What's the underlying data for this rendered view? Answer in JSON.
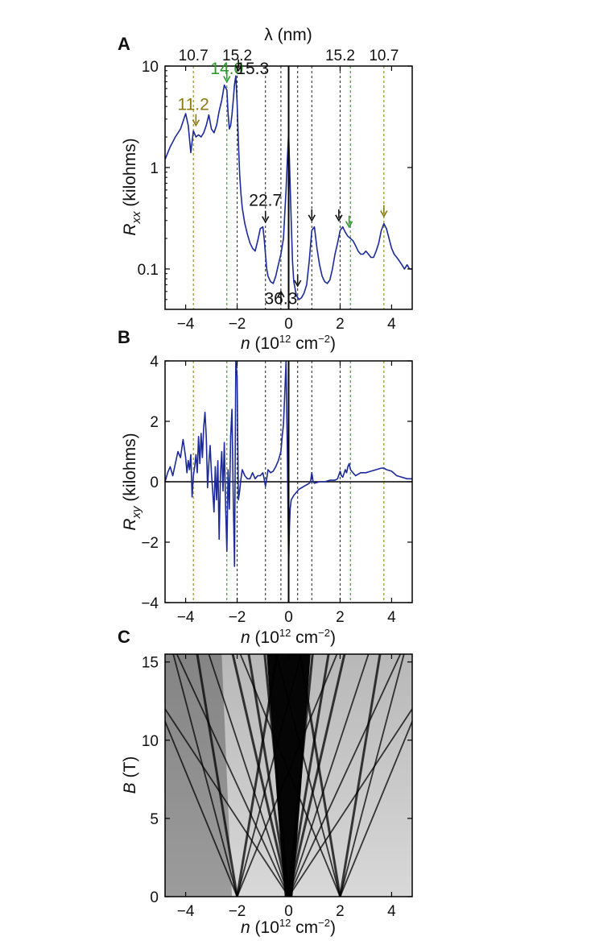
{
  "chart_data": [
    {
      "panel": "A",
      "type": "line",
      "y_scale": "log",
      "xlabel_prefix": "n",
      "xlabel_units": "(10",
      "xlabel_exp": "12",
      "xlabel_tail": " cm",
      "xlabel_exp2": "−2",
      "xlabel_close": ")",
      "ylabel_prefix": "R",
      "ylabel_sub": "xx",
      "ylabel_units": " (kilohms)",
      "top_axis_label": "λ (nm)",
      "top_ticks": [
        {
          "x": -3.7,
          "label": "10.7"
        },
        {
          "x": -2.0,
          "label": "15.2"
        },
        {
          "x": 2.0,
          "label": "15.2"
        },
        {
          "x": 3.7,
          "label": "10.7"
        }
      ],
      "xlim": [
        -4.8,
        4.8
      ],
      "ylim": [
        0.04,
        10
      ],
      "x_ticks": [
        -4,
        -2,
        0,
        2,
        4
      ],
      "y_ticks": [
        0.1,
        1,
        10
      ],
      "y_tick_labels": [
        "0.1",
        "1",
        "10"
      ],
      "line_color": "#1c2a9a",
      "series": [
        {
          "x": [
            -4.8,
            -4.6,
            -4.4,
            -4.2,
            -4.0,
            -3.9,
            -3.8,
            -3.7,
            -3.6,
            -3.5,
            -3.4,
            -3.3,
            -3.2,
            -3.1,
            -3.0,
            -2.9,
            -2.8,
            -2.7,
            -2.6,
            -2.5,
            -2.4,
            -2.35,
            -2.3,
            -2.25,
            -2.2,
            -2.15,
            -2.1,
            -2.05,
            -2.0,
            -1.95,
            -1.9,
            -1.85,
            -1.8,
            -1.7,
            -1.6,
            -1.5,
            -1.4,
            -1.3,
            -1.2,
            -1.1,
            -1.0,
            -0.95,
            -0.9,
            -0.85,
            -0.8,
            -0.7,
            -0.6,
            -0.5,
            -0.4,
            -0.3,
            -0.2,
            -0.15,
            -0.1,
            -0.05,
            0.0,
            0.05,
            0.1,
            0.15,
            0.2,
            0.3,
            0.4,
            0.5,
            0.6,
            0.7,
            0.8,
            0.9,
            1.0,
            1.1,
            1.2,
            1.3,
            1.4,
            1.5,
            1.6,
            1.7,
            1.8,
            1.9,
            2.0,
            2.1,
            2.2,
            2.3,
            2.4,
            2.5,
            2.6,
            2.7,
            2.8,
            2.9,
            3.0,
            3.1,
            3.2,
            3.3,
            3.4,
            3.5,
            3.6,
            3.7,
            3.8,
            3.9,
            4.0,
            4.1,
            4.2,
            4.3,
            4.4,
            4.5,
            4.6,
            4.7,
            4.8
          ],
          "y": [
            1.2,
            1.6,
            2.0,
            2.4,
            3.4,
            2.6,
            1.4,
            2.3,
            2.0,
            2.1,
            2.0,
            2.2,
            2.6,
            3.3,
            2.4,
            2.2,
            2.6,
            3.6,
            4.6,
            6.5,
            5.8,
            3.4,
            2.4,
            2.6,
            3.3,
            4.6,
            6.6,
            8.0,
            4.4,
            1.8,
            0.85,
            0.55,
            0.4,
            0.28,
            0.22,
            0.18,
            0.16,
            0.15,
            0.19,
            0.25,
            0.26,
            0.2,
            0.14,
            0.1,
            0.085,
            0.075,
            0.072,
            0.085,
            0.11,
            0.14,
            0.2,
            0.35,
            0.6,
            1.2,
            2.2,
            0.8,
            0.3,
            0.12,
            0.075,
            0.055,
            0.05,
            0.052,
            0.058,
            0.07,
            0.12,
            0.24,
            0.26,
            0.16,
            0.11,
            0.085,
            0.075,
            0.072,
            0.078,
            0.1,
            0.14,
            0.18,
            0.24,
            0.26,
            0.23,
            0.21,
            0.2,
            0.19,
            0.17,
            0.15,
            0.14,
            0.14,
            0.15,
            0.14,
            0.13,
            0.13,
            0.15,
            0.18,
            0.24,
            0.28,
            0.25,
            0.2,
            0.16,
            0.14,
            0.13,
            0.12,
            0.11,
            0.1,
            0.11,
            0.1,
            0.1
          ]
        }
      ],
      "vlines": [
        {
          "x": -3.7,
          "color": "#8a8a1a"
        },
        {
          "x": -2.4,
          "color": "#2a9a2a"
        },
        {
          "x": -2.0,
          "color": "#333333"
        },
        {
          "x": -0.9,
          "color": "#333333"
        },
        {
          "x": -0.3,
          "color": "#333333"
        },
        {
          "x": 0.35,
          "color": "#333333"
        },
        {
          "x": 0.9,
          "color": "#333333"
        },
        {
          "x": 2.0,
          "color": "#333333"
        },
        {
          "x": 2.4,
          "color": "#2a9a2a"
        },
        {
          "x": 3.7,
          "color": "#8a8a1a"
        }
      ],
      "annotations": [
        {
          "text": "11.2",
          "color": "#8a7a10",
          "x": -3.7,
          "y": 3.7
        },
        {
          "text": "14.0",
          "color": "#2a9a2a",
          "x": -2.4,
          "y": 8.3
        },
        {
          "text": "15.3",
          "color": "#111111",
          "x": -1.4,
          "y": 8.3
        },
        {
          "text": "22.7",
          "color": "#111111",
          "x": -0.9,
          "y": 0.42
        },
        {
          "text": "36.3",
          "color": "#111111",
          "x": -0.3,
          "y": 0.045
        }
      ],
      "arrows": [
        {
          "x": -3.6,
          "y": 2.6,
          "color": "#8a7a10",
          "dir": "down"
        },
        {
          "x": -2.4,
          "y": 7.0,
          "color": "#2a9a2a",
          "dir": "down"
        },
        {
          "x": -1.95,
          "y": 9.0,
          "color": "#111111",
          "dir": "down"
        },
        {
          "x": -0.9,
          "y": 0.29,
          "color": "#111111",
          "dir": "down"
        },
        {
          "x": -0.3,
          "y": 0.06,
          "color": "#111111",
          "dir": "up"
        },
        {
          "x": 0.35,
          "y": 0.068,
          "color": "#111111",
          "dir": "down"
        },
        {
          "x": 0.9,
          "y": 0.3,
          "color": "#111111",
          "dir": "down"
        },
        {
          "x": 1.95,
          "y": 0.3,
          "color": "#111111",
          "dir": "down"
        },
        {
          "x": 2.35,
          "y": 0.26,
          "color": "#2a9a2a",
          "dir": "down"
        },
        {
          "x": 3.7,
          "y": 0.33,
          "color": "#8a7a10",
          "dir": "down"
        }
      ]
    },
    {
      "panel": "B",
      "type": "line",
      "xlabel_prefix": "n",
      "xlabel_units": "(10",
      "xlabel_exp": "12",
      "xlabel_tail": " cm",
      "xlabel_exp2": "−2",
      "xlabel_close": ")",
      "ylabel_prefix": "R",
      "ylabel_sub": "xy",
      "ylabel_units": " (kilohms)",
      "xlim": [
        -4.8,
        4.8
      ],
      "ylim": [
        -4,
        4
      ],
      "x_ticks": [
        -4,
        -2,
        0,
        2,
        4
      ],
      "y_ticks": [
        -4,
        -2,
        0,
        2,
        4
      ],
      "y_tick_labels": [
        "−4",
        "−2",
        "0",
        "2",
        "4"
      ],
      "line_color": "#1c2a9a",
      "series": [
        {
          "x": [
            -4.8,
            -4.7,
            -4.6,
            -4.5,
            -4.4,
            -4.3,
            -4.2,
            -4.1,
            -4.0,
            -3.95,
            -3.9,
            -3.85,
            -3.8,
            -3.75,
            -3.7,
            -3.65,
            -3.6,
            -3.55,
            -3.5,
            -3.45,
            -3.4,
            -3.35,
            -3.3,
            -3.25,
            -3.2,
            -3.15,
            -3.1,
            -3.05,
            -3.0,
            -2.95,
            -2.9,
            -2.85,
            -2.8,
            -2.75,
            -2.7,
            -2.65,
            -2.6,
            -2.55,
            -2.5,
            -2.45,
            -2.4,
            -2.35,
            -2.3,
            -2.25,
            -2.2,
            -2.15,
            -2.1,
            -2.05,
            -2.0,
            -1.95,
            -1.9,
            -1.85,
            -1.8,
            -1.7,
            -1.6,
            -1.5,
            -1.4,
            -1.3,
            -1.2,
            -1.1,
            -1.0,
            -0.95,
            -0.9,
            -0.85,
            -0.8,
            -0.7,
            -0.6,
            -0.5,
            -0.4,
            -0.3,
            -0.25,
            -0.2,
            -0.15,
            -0.1,
            -0.05,
            0.0,
            0.03,
            0.06,
            0.1,
            0.2,
            0.3,
            0.4,
            0.5,
            0.6,
            0.7,
            0.8,
            0.85,
            0.9,
            0.95,
            1.0,
            1.2,
            1.4,
            1.6,
            1.8,
            1.9,
            2.0,
            2.05,
            2.1,
            2.2,
            2.25,
            2.3,
            2.35,
            2.4,
            2.5,
            2.6,
            2.8,
            3.0,
            3.2,
            3.4,
            3.6,
            3.7,
            3.8,
            4.0,
            4.2,
            4.4,
            4.6,
            4.8
          ],
          "y": [
            0.0,
            0.3,
            0.5,
            0.2,
            0.6,
            1.0,
            0.8,
            1.4,
            0.8,
            0.3,
            0.7,
            0.4,
            0.9,
            -0.5,
            0.2,
            0.5,
            0.9,
            0.3,
            1.5,
            0.6,
            1.6,
            0.8,
            1.8,
            2.3,
            1.5,
            -0.2,
            0.6,
            1.2,
            0.3,
            -0.3,
            -1.0,
            0.5,
            -0.6,
            0.7,
            -1.9,
            0.2,
            1.0,
            -0.3,
            1.3,
            -0.8,
            -2.3,
            0.4,
            -0.9,
            1.5,
            2.4,
            -0.5,
            -2.8,
            4.0,
            3.5,
            -0.6,
            -0.3,
            0.1,
            0.4,
            0.2,
            0.1,
            0.1,
            0.3,
            0.1,
            0.2,
            0.2,
            0.3,
            0.1,
            -0.15,
            0.1,
            0.4,
            0.3,
            0.35,
            0.5,
            0.7,
            1.0,
            1.5,
            1.9,
            2.9,
            4.0,
            1.0,
            -2.9,
            -1.5,
            -0.9,
            -0.6,
            -0.45,
            -0.35,
            -0.25,
            -0.2,
            -0.15,
            -0.1,
            -0.05,
            0.0,
            0.3,
            0.0,
            -0.05,
            0.0,
            0.0,
            0.05,
            0.05,
            0.1,
            0.35,
            0.2,
            0.15,
            0.4,
            0.3,
            0.5,
            0.6,
            0.4,
            0.3,
            0.2,
            0.3,
            0.3,
            0.35,
            0.4,
            0.45,
            0.45,
            0.4,
            0.35,
            0.2,
            0.15,
            0.1,
            0.1
          ]
        }
      ],
      "vlines": [
        {
          "x": -3.7,
          "color": "#8a8a1a"
        },
        {
          "x": -2.4,
          "color": "#2a9a2a"
        },
        {
          "x": -2.0,
          "color": "#333333"
        },
        {
          "x": -0.9,
          "color": "#333333"
        },
        {
          "x": -0.3,
          "color": "#333333"
        },
        {
          "x": 0.35,
          "color": "#333333"
        },
        {
          "x": 0.9,
          "color": "#333333"
        },
        {
          "x": 2.0,
          "color": "#333333"
        },
        {
          "x": 2.4,
          "color": "#2a9a2a"
        },
        {
          "x": 3.7,
          "color": "#8a8a1a"
        }
      ]
    },
    {
      "panel": "C",
      "type": "heatmap",
      "xlabel_prefix": "n",
      "xlabel_units": "(10",
      "xlabel_exp": "12",
      "xlabel_tail": " cm",
      "xlabel_exp2": "−2",
      "xlabel_close": ")",
      "ylabel_prefix": "B",
      "ylabel_units": " (T)",
      "xlim": [
        -4.8,
        4.8
      ],
      "ylim": [
        0,
        15.5
      ],
      "x_ticks": [
        -4,
        -2,
        0,
        2,
        4
      ],
      "y_ticks": [
        0,
        5,
        10,
        15
      ],
      "y_tick_labels": [
        "0",
        "5",
        "10",
        "15"
      ],
      "fans": [
        {
          "origin": 0,
          "slopes": [
            0.06,
            0.1,
            0.14,
            0.2,
            0.28,
            0.4,
            -0.06,
            -0.1,
            -0.14,
            -0.2,
            -0.28,
            -0.4
          ]
        },
        {
          "origin": -2.0,
          "slopes": [
            0.1,
            0.16,
            0.25,
            -0.1,
            -0.16,
            -0.25
          ]
        },
        {
          "origin": 2.0,
          "slopes": [
            0.1,
            0.16,
            0.25,
            -0.1,
            -0.16,
            -0.25
          ]
        }
      ]
    }
  ]
}
